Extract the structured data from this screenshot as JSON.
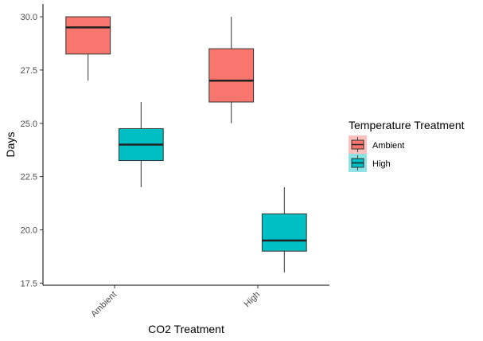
{
  "chart_data": {
    "type": "boxplot",
    "title": "",
    "xlabel": "CO2 Treatment",
    "ylabel": "Days",
    "categories": [
      "Ambient",
      "High"
    ],
    "ylim": [
      17.4,
      30.6
    ],
    "yticks": [
      "17.5",
      "20.0",
      "22.5",
      "25.0",
      "27.5",
      "30.0"
    ],
    "grid": false,
    "legend": {
      "title": "Temperature Treatment",
      "placement": "right"
    },
    "series": [
      {
        "name": "Ambient",
        "color": "#F8766D",
        "boxes": [
          {
            "category": "Ambient",
            "min": 27.0,
            "q1": 28.25,
            "median": 29.5,
            "q3": 30.0,
            "max": 30.0
          },
          {
            "category": "High",
            "min": 25.0,
            "q1": 26.0,
            "median": 27.0,
            "q3": 28.5,
            "max": 30.0
          }
        ]
      },
      {
        "name": "High",
        "color": "#00BFC4",
        "boxes": [
          {
            "category": "Ambient",
            "min": 22.0,
            "q1": 23.25,
            "median": 24.0,
            "q3": 24.75,
            "max": 26.0
          },
          {
            "category": "High",
            "min": 18.0,
            "q1": 19.0,
            "median": 19.5,
            "q3": 20.75,
            "max": 22.0
          }
        ]
      }
    ]
  }
}
